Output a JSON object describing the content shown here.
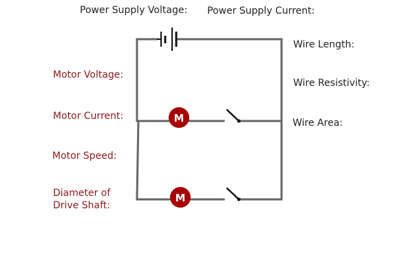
{
  "supply": {
    "voltage_label": "Power Supply Voltage:",
    "current_label": "Power Supply Current:"
  },
  "wire": {
    "length_label": "Wire Length:",
    "resistivity_label": "Wire Resistivity:",
    "area_label": "Wire Area:"
  },
  "motor": {
    "voltage_label": "Motor Voltage:",
    "current_label": "Motor Current:",
    "speed_label": "Motor Speed:",
    "diameter_label_line1": "Diameter of",
    "diameter_label_line2": "Drive Shaft:"
  },
  "components": {
    "motor_symbol": "M",
    "motor_color": "#a80000",
    "wire_color": "#666666",
    "switch_color": "#111111"
  }
}
